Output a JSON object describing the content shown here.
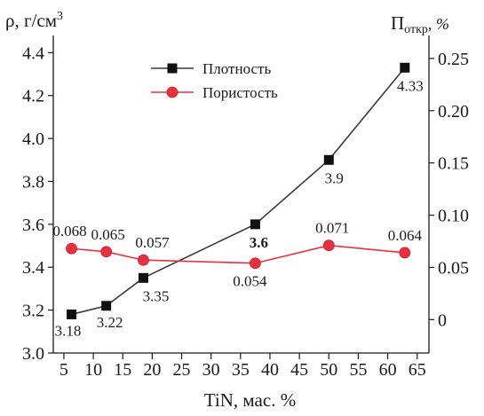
{
  "chart_data": {
    "type": "line",
    "x": [
      6.3,
      12.2,
      18.5,
      37.5,
      50,
      62.9
    ],
    "x_ticks": [
      "5",
      "10",
      "15",
      "20",
      "25",
      "30",
      "35",
      "40",
      "45",
      "50",
      "55",
      "60",
      "65"
    ],
    "x_tick_values": [
      5,
      10,
      15,
      20,
      25,
      30,
      35,
      40,
      45,
      50,
      55,
      60,
      65
    ],
    "xlim": [
      3.2,
      67
    ],
    "xlabel": "TiN, мас. %",
    "y_left": {
      "label_main": "ρ, г/см",
      "label_sup": "3",
      "ylim": [
        3.0,
        4.48
      ],
      "ticks": [
        "3.0",
        "3.2",
        "3.4",
        "3.6",
        "3.8",
        "4.0",
        "4.2",
        "4.4"
      ],
      "tick_values": [
        3.0,
        3.2,
        3.4,
        3.6,
        3.8,
        4.0,
        4.2,
        4.4
      ]
    },
    "y_right": {
      "label_main": "П",
      "label_sub": "откр",
      "label_unit": ", %",
      "ylim": [
        -0.032,
        0.272
      ],
      "ticks": [
        "0",
        "0.05",
        "0.10",
        "0.15",
        "0.20",
        "0.25"
      ],
      "tick_values": [
        0,
        0.05,
        0.1,
        0.15,
        0.2,
        0.25
      ]
    },
    "series": [
      {
        "name": "Плотность",
        "axis": "left",
        "color": "#3a3a3a",
        "marker": "square",
        "values": [
          3.18,
          3.22,
          3.35,
          3.6,
          3.9,
          4.33
        ],
        "labels": [
          "3.18",
          "3.22",
          "3.35",
          "3.6",
          "3.9",
          "4.33"
        ]
      },
      {
        "name": "Пористость",
        "axis": "right",
        "color": "#e8313f",
        "marker": "circle",
        "values": [
          0.068,
          0.065,
          0.057,
          0.054,
          0.071,
          0.064
        ],
        "labels": [
          "0.068",
          "0.065",
          "0.057",
          "0.054",
          "0.071",
          "0.064"
        ]
      }
    ],
    "legend_position": "top-left",
    "grid": false
  }
}
